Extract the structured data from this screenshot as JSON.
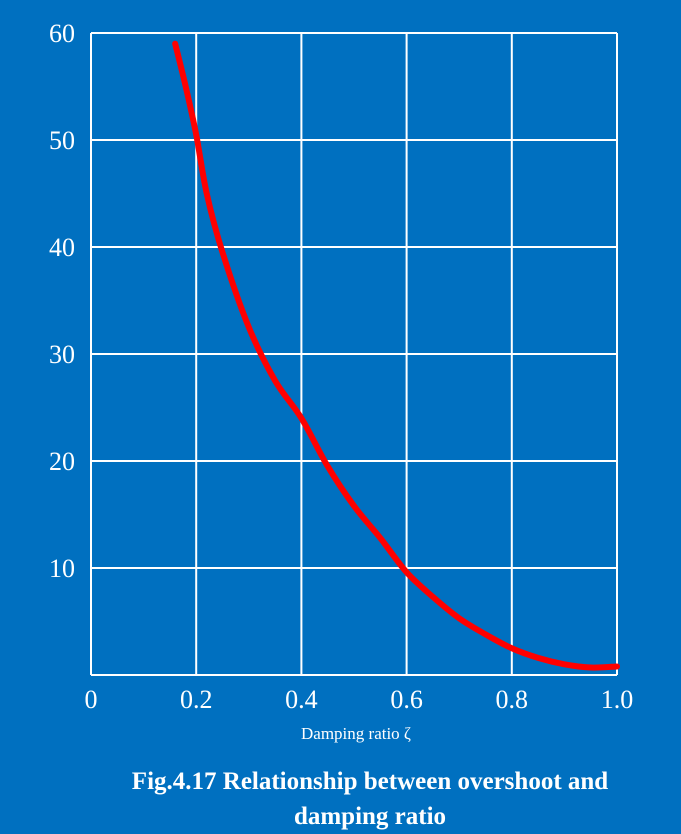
{
  "caption": {
    "line1": "Fig.4.17 Relationship between overshoot and",
    "line2": "damping ratio"
  },
  "colors": {
    "background": "#0070C0",
    "grid": "#ffffff",
    "curve": "#FF0000",
    "text": "#ffffff"
  },
  "chart_data": {
    "type": "line",
    "title": "",
    "xlabel": "Damping ratio ζ",
    "ylabel": "",
    "xlim": [
      0,
      1.0
    ],
    "ylim": [
      0,
      60
    ],
    "x_ticks": [
      0,
      0.2,
      0.4,
      0.6,
      0.8,
      1.0
    ],
    "x_tick_labels": [
      "0",
      "0.2",
      "0.4",
      "0.6",
      "0.8",
      "1.0"
    ],
    "y_ticks": [
      10,
      20,
      30,
      40,
      50,
      60
    ],
    "y_tick_labels": [
      "10",
      "20",
      "30",
      "40",
      "50",
      "60"
    ],
    "grid": true,
    "series": [
      {
        "color": "#FF0000",
        "x": [
          0.16,
          0.18,
          0.2,
          0.22,
          0.25,
          0.3,
          0.35,
          0.4,
          0.45,
          0.5,
          0.55,
          0.6,
          0.65,
          0.7,
          0.75,
          0.8,
          0.85,
          0.9,
          0.95,
          1.0
        ],
        "y": [
          59,
          55,
          50.5,
          45,
          39.5,
          32.5,
          27.5,
          24,
          19.5,
          15.8,
          12.8,
          9.6,
          7.3,
          5.3,
          3.8,
          2.5,
          1.6,
          1.0,
          0.7,
          0.8
        ]
      }
    ]
  }
}
